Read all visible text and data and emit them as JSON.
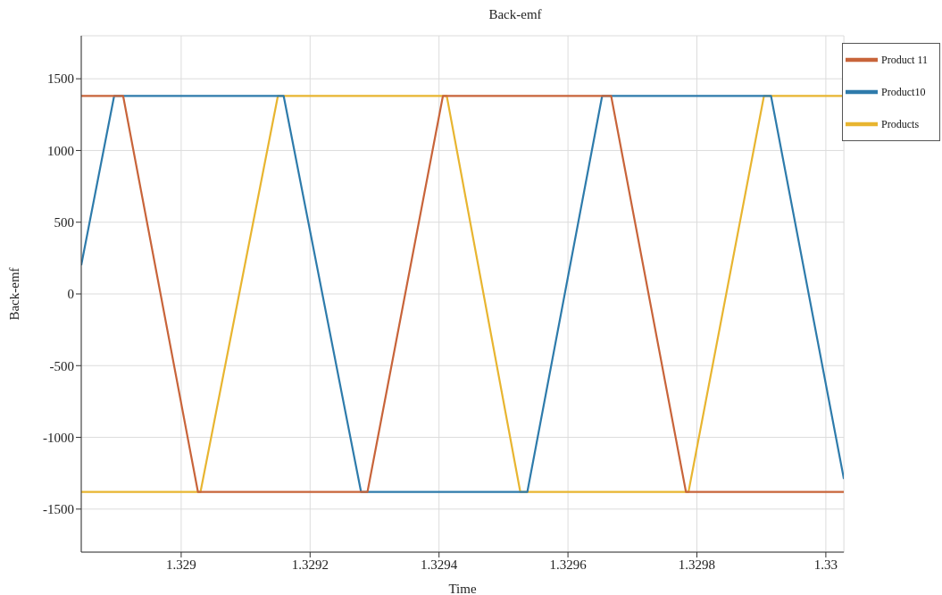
{
  "chart_data": {
    "type": "line",
    "title": "Back-emf",
    "xlabel": "Time",
    "ylabel": "Back-emf",
    "xlim": [
      1.328845,
      1.330028
    ],
    "xticks": [
      1.329,
      1.3292,
      1.3294,
      1.3296,
      1.3298,
      1.33
    ],
    "ylim": [
      -1800,
      1800
    ],
    "yticks": [
      -1500,
      -1000,
      -500,
      0,
      500,
      1000,
      1500
    ],
    "grid": true,
    "legend": "top right",
    "series": [
      {
        "name": "Products",
        "color": "#e8b530",
        "x": [
          1.328845,
          1.32903,
          1.32915,
          1.329412,
          1.329526,
          1.329787,
          1.329904,
          1.330028
        ],
        "values": [
          -1380,
          -1380,
          1380,
          1380,
          -1380,
          -1380,
          1380,
          1380
        ]
      },
      {
        "name": "Product10",
        "color": "#2e7bab",
        "x": [
          1.328845,
          1.328896,
          1.329159,
          1.329279,
          1.329537,
          1.329653,
          1.329915,
          1.330028
        ],
        "values": [
          200,
          1380,
          1380,
          -1380,
          -1380,
          1380,
          1380,
          -1290
        ]
      },
      {
        "name": "Product 11",
        "color": "#c8643a",
        "x": [
          1.328845,
          1.32891,
          1.329026,
          1.329289,
          1.329406,
          1.329667,
          1.329783,
          1.330028
        ],
        "values": [
          1380,
          1380,
          -1380,
          -1380,
          1380,
          1380,
          -1380,
          -1380
        ]
      }
    ]
  }
}
